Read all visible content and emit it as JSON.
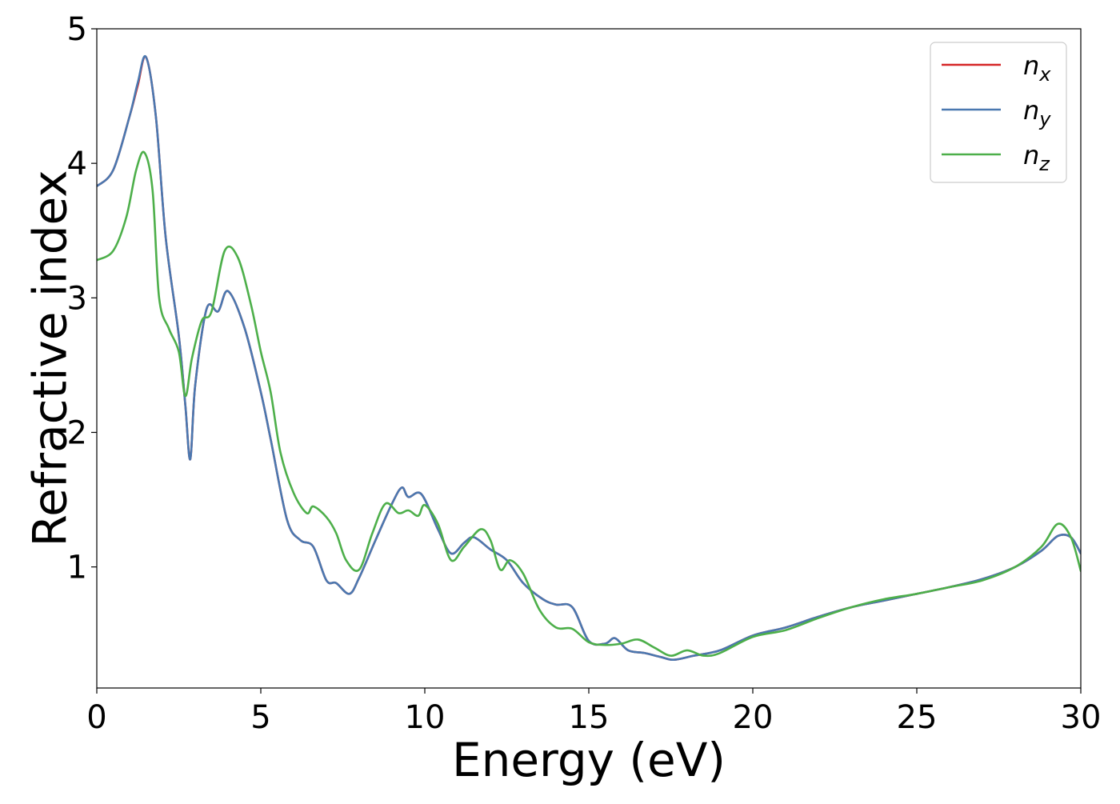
{
  "chart_data": {
    "type": "line",
    "title": "",
    "xlabel": "Energy (eV)",
    "ylabel": "Refractive index",
    "xlim": [
      0,
      30
    ],
    "ylim": [
      0.1,
      5.0
    ],
    "xticks": [
      0,
      5,
      10,
      15,
      20,
      25,
      30
    ],
    "yticks": [
      1,
      2,
      3,
      4,
      5
    ],
    "grid": false,
    "legend_position": "top-right",
    "series": [
      {
        "name": "n_x",
        "legend_base": "n",
        "legend_sub": "x",
        "color": "#d62728",
        "x": [
          0,
          0.5,
          1.0,
          1.25,
          1.5,
          1.8,
          2.1,
          2.5,
          2.7,
          2.85,
          3.0,
          3.35,
          3.7,
          4.0,
          4.5,
          5.0,
          5.3,
          5.8,
          6.2,
          6.6,
          7.0,
          7.3,
          7.7,
          8.0,
          8.5,
          9.0,
          9.3,
          9.5,
          9.9,
          10.4,
          10.8,
          11.2,
          11.5,
          12.0,
          12.5,
          13.0,
          13.6,
          14.0,
          14.5,
          15.0,
          15.5,
          15.8,
          16.2,
          16.7,
          17.2,
          17.6,
          18.2,
          19.0,
          20.0,
          21.0,
          22.0,
          23.0,
          24.0,
          25.0,
          26.0,
          27.0,
          28.0,
          28.8,
          29.3,
          29.7,
          30.0
        ],
        "values": [
          3.83,
          3.95,
          4.35,
          4.58,
          4.79,
          4.35,
          3.45,
          2.72,
          2.2,
          1.8,
          2.35,
          2.92,
          2.9,
          3.05,
          2.78,
          2.3,
          1.95,
          1.35,
          1.2,
          1.15,
          0.9,
          0.88,
          0.8,
          0.92,
          1.2,
          1.47,
          1.59,
          1.52,
          1.54,
          1.28,
          1.1,
          1.18,
          1.22,
          1.13,
          1.05,
          0.88,
          0.76,
          0.72,
          0.7,
          0.45,
          0.43,
          0.47,
          0.38,
          0.36,
          0.33,
          0.31,
          0.34,
          0.38,
          0.49,
          0.55,
          0.63,
          0.7,
          0.75,
          0.8,
          0.85,
          0.91,
          1.0,
          1.12,
          1.23,
          1.22,
          1.1
        ]
      },
      {
        "name": "n_y",
        "legend_base": "n",
        "legend_sub": "y",
        "color": "#4a78b0",
        "x": [
          0,
          0.5,
          1.0,
          1.25,
          1.5,
          1.8,
          2.1,
          2.5,
          2.7,
          2.85,
          3.0,
          3.35,
          3.7,
          4.0,
          4.5,
          5.0,
          5.3,
          5.8,
          6.2,
          6.6,
          7.0,
          7.3,
          7.7,
          8.0,
          8.5,
          9.0,
          9.3,
          9.5,
          9.9,
          10.4,
          10.8,
          11.2,
          11.5,
          12.0,
          12.5,
          13.0,
          13.6,
          14.0,
          14.5,
          15.0,
          15.5,
          15.8,
          16.2,
          16.7,
          17.2,
          17.6,
          18.2,
          19.0,
          20.0,
          21.0,
          22.0,
          23.0,
          24.0,
          25.0,
          26.0,
          27.0,
          28.0,
          28.8,
          29.3,
          29.7,
          30.0
        ],
        "values": [
          3.83,
          3.95,
          4.35,
          4.6,
          4.79,
          4.35,
          3.45,
          2.72,
          2.2,
          1.8,
          2.35,
          2.92,
          2.9,
          3.05,
          2.78,
          2.3,
          1.95,
          1.35,
          1.2,
          1.15,
          0.9,
          0.88,
          0.8,
          0.92,
          1.2,
          1.47,
          1.59,
          1.52,
          1.54,
          1.28,
          1.1,
          1.18,
          1.22,
          1.13,
          1.05,
          0.88,
          0.76,
          0.72,
          0.7,
          0.45,
          0.43,
          0.47,
          0.38,
          0.36,
          0.33,
          0.31,
          0.34,
          0.38,
          0.49,
          0.55,
          0.63,
          0.7,
          0.75,
          0.8,
          0.85,
          0.91,
          1.0,
          1.12,
          1.23,
          1.22,
          1.1
        ]
      },
      {
        "name": "n_z",
        "legend_base": "n",
        "legend_sub": "z",
        "color": "#4daf4a",
        "x": [
          0,
          0.5,
          0.9,
          1.2,
          1.45,
          1.7,
          1.9,
          2.2,
          2.5,
          2.7,
          2.9,
          3.2,
          3.5,
          3.9,
          4.3,
          4.7,
          5.0,
          5.3,
          5.6,
          6.0,
          6.4,
          6.6,
          7.0,
          7.3,
          7.6,
          8.0,
          8.4,
          8.8,
          9.2,
          9.5,
          9.8,
          10.0,
          10.4,
          10.8,
          11.2,
          11.7,
          12.0,
          12.3,
          12.6,
          13.0,
          13.5,
          14.0,
          14.5,
          15.0,
          15.5,
          16.0,
          16.5,
          17.0,
          17.5,
          18.0,
          18.5,
          19.0,
          20.0,
          21.0,
          22.0,
          23.0,
          24.0,
          25.0,
          26.0,
          27.0,
          28.0,
          28.8,
          29.3,
          29.7,
          30.0
        ],
        "values": [
          3.28,
          3.35,
          3.6,
          3.95,
          4.08,
          3.8,
          3.0,
          2.77,
          2.6,
          2.27,
          2.55,
          2.83,
          2.9,
          3.35,
          3.3,
          2.95,
          2.6,
          2.3,
          1.85,
          1.55,
          1.4,
          1.45,
          1.37,
          1.25,
          1.05,
          0.98,
          1.25,
          1.47,
          1.4,
          1.42,
          1.38,
          1.46,
          1.32,
          1.05,
          1.15,
          1.28,
          1.2,
          0.98,
          1.05,
          0.95,
          0.68,
          0.55,
          0.54,
          0.44,
          0.42,
          0.43,
          0.46,
          0.4,
          0.34,
          0.38,
          0.34,
          0.36,
          0.48,
          0.53,
          0.62,
          0.7,
          0.76,
          0.8,
          0.85,
          0.9,
          1.0,
          1.15,
          1.32,
          1.22,
          0.97
        ]
      }
    ]
  }
}
